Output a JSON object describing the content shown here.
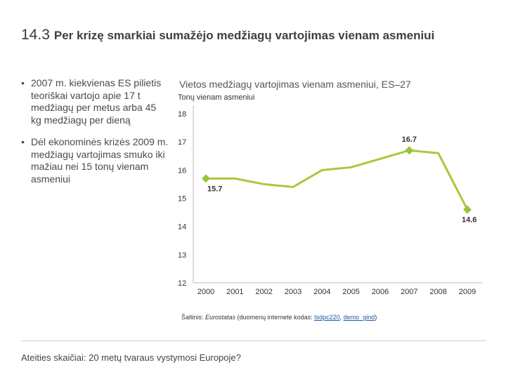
{
  "slide": {
    "number": "14.3",
    "title": "Per krizę smarkiai sumažėjo medžiagų vartojimas vienam asmeniui"
  },
  "bullets": [
    "2007 m. kiekvienas ES pilietis teoriškai vartojo apie 17 t medžiagų per metus arba 45 kg medžiagų per dieną",
    "Dėl ekonominės krizės 2009 m. medžiagų vartojimas smuko iki mažiau nei 15 tonų vienam asmeniui"
  ],
  "bullet_marker": "•",
  "chart_data": {
    "type": "line",
    "title": "Vietos medžiagų vartojimas vienam asmeniui, ES–27",
    "ylabel": "Tonų vienam asmeniui",
    "xlabel": "",
    "categories": [
      "2000",
      "2001",
      "2002",
      "2003",
      "2004",
      "2005",
      "2006",
      "2007",
      "2008",
      "2009"
    ],
    "series": [
      {
        "name": "Vietos medžiagų vartojimas vienam asmeniui",
        "values": [
          15.7,
          15.7,
          15.5,
          15.4,
          16.0,
          16.1,
          16.4,
          16.7,
          16.6,
          14.6
        ]
      }
    ],
    "ylim": [
      12,
      18
    ],
    "yticks": [
      12,
      13,
      14,
      15,
      16,
      17,
      18
    ],
    "highlighted_points": [
      {
        "index": 0,
        "label": "15.7"
      },
      {
        "index": 7,
        "label": "16.7"
      },
      {
        "index": 9,
        "label": "14.6"
      }
    ],
    "grid": false,
    "line_color": "#a8c93a",
    "marker_color": "#9bc23c"
  },
  "source": {
    "prefix": "Šaltinis: ",
    "org": "Eurostatas",
    "middle": " (duomenų internete kodas: ",
    "code1": "tsdpc220",
    "separator": ", ",
    "code2": "demo_gind",
    "suffix": ")"
  },
  "footer": "Ateities skaičiai: 20 metų tvaraus vystymosi Europoje?"
}
